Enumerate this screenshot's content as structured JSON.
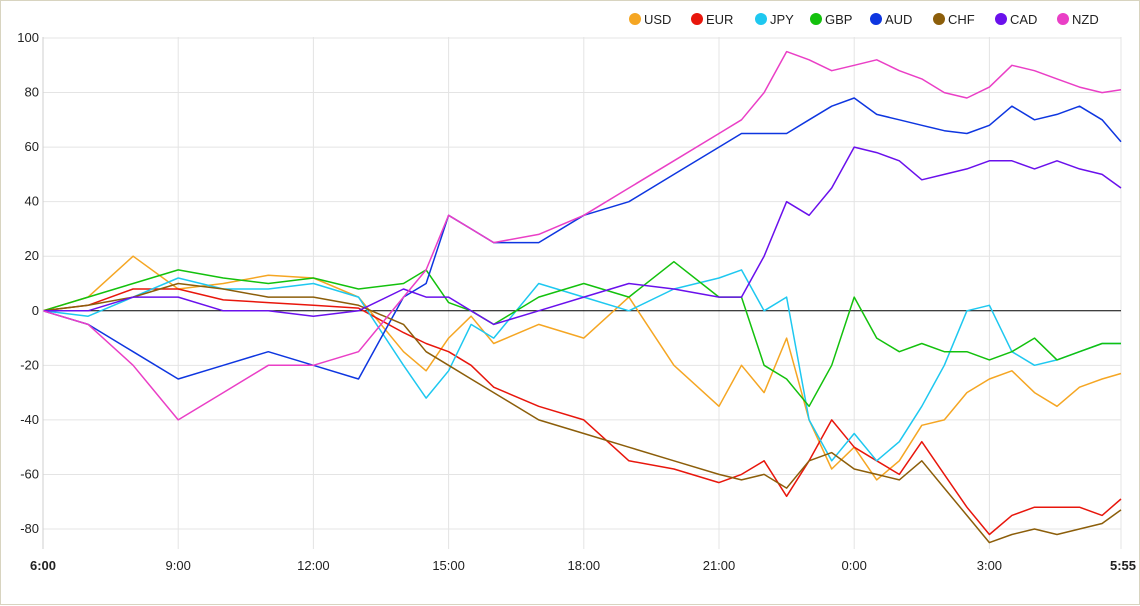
{
  "chart_data": {
    "type": "line",
    "title": "",
    "xlabel": "",
    "ylabel": "",
    "ylim": [
      -88,
      101
    ],
    "yticks": [
      100,
      80,
      60,
      40,
      20,
      0,
      -20,
      -40,
      -60,
      -80
    ],
    "xticks": [
      {
        "label": "6:00",
        "h": 0,
        "bold": true
      },
      {
        "label": "9:00",
        "h": 3,
        "bold": false
      },
      {
        "label": "12:00",
        "h": 6,
        "bold": false
      },
      {
        "label": "15:00",
        "h": 9,
        "bold": false
      },
      {
        "label": "18:00",
        "h": 12,
        "bold": false
      },
      {
        "label": "21:00",
        "h": 15,
        "bold": false
      },
      {
        "label": "0:00",
        "h": 18,
        "bold": false
      },
      {
        "label": "3:00",
        "h": 21,
        "bold": false
      },
      {
        "label": "5:55",
        "h": 23.92,
        "bold": true
      }
    ],
    "xlim": [
      0,
      23.92
    ],
    "grid": true,
    "legend_position": "top-right",
    "x_hours": [
      0,
      1,
      2,
      3,
      4,
      5,
      6,
      7,
      8,
      8.5,
      9,
      9.5,
      10,
      11,
      12,
      13,
      14,
      15,
      15.5,
      16,
      16.5,
      17,
      17.5,
      18,
      18.5,
      19,
      19.5,
      20,
      20.5,
      21,
      21.5,
      22,
      22.5,
      23,
      23.5,
      23.92
    ],
    "series": [
      {
        "name": "USD",
        "color": "#f5a623",
        "values": [
          0,
          5,
          20,
          8,
          10,
          13,
          12,
          5,
          -15,
          -22,
          -10,
          -2,
          -12,
          -5,
          -10,
          5,
          -20,
          -35,
          -20,
          -30,
          -10,
          -40,
          -58,
          -50,
          -62,
          -55,
          -42,
          -40,
          -30,
          -25,
          -22,
          -30,
          -35,
          -28,
          -25,
          -23
        ]
      },
      {
        "name": "EUR",
        "color": "#e8160c",
        "values": [
          0,
          2,
          8,
          8,
          4,
          3,
          2,
          1,
          -8,
          -12,
          -15,
          -20,
          -28,
          -35,
          -40,
          -55,
          -58,
          -63,
          -60,
          -55,
          -68,
          -55,
          -40,
          -50,
          -55,
          -60,
          -48,
          -60,
          -72,
          -82,
          -75,
          -72,
          -72,
          -72,
          -75,
          -69
        ]
      },
      {
        "name": "JPY",
        "color": "#1ec8f0",
        "values": [
          0,
          -2,
          5,
          12,
          8,
          8,
          10,
          5,
          -20,
          -32,
          -22,
          -5,
          -10,
          10,
          5,
          0,
          8,
          12,
          15,
          0,
          5,
          -40,
          -55,
          -45,
          -55,
          -48,
          -35,
          -20,
          0,
          2,
          -15,
          -20,
          -18,
          -15,
          -12,
          -12
        ]
      },
      {
        "name": "GBP",
        "color": "#13c10d",
        "values": [
          0,
          5,
          10,
          15,
          12,
          10,
          12,
          8,
          10,
          15,
          3,
          0,
          -5,
          5,
          10,
          5,
          18,
          5,
          5,
          -20,
          -25,
          -35,
          -20,
          5,
          -10,
          -15,
          -12,
          -15,
          -15,
          -18,
          -15,
          -10,
          -18,
          -15,
          -12,
          -12
        ]
      },
      {
        "name": "AUD",
        "color": "#0e36e0",
        "values": [
          0,
          -5,
          -15,
          -25,
          -20,
          -15,
          -20,
          -25,
          5,
          10,
          35,
          30,
          25,
          25,
          35,
          40,
          50,
          60,
          65,
          65,
          65,
          70,
          75,
          78,
          72,
          70,
          68,
          66,
          65,
          68,
          75,
          70,
          72,
          75,
          70,
          62
        ]
      },
      {
        "name": "CHF",
        "color": "#8c5e0a",
        "values": [
          0,
          2,
          5,
          10,
          8,
          5,
          5,
          2,
          -5,
          -15,
          -20,
          -25,
          -30,
          -40,
          -45,
          -50,
          -55,
          -60,
          -62,
          -60,
          -65,
          -55,
          -52,
          -58,
          -60,
          -62,
          -55,
          -65,
          -75,
          -85,
          -82,
          -80,
          -82,
          -80,
          -78,
          -73
        ]
      },
      {
        "name": "CAD",
        "color": "#6a10ec",
        "values": [
          0,
          0,
          5,
          5,
          0,
          0,
          -2,
          0,
          8,
          5,
          5,
          0,
          -5,
          0,
          5,
          10,
          8,
          5,
          5,
          20,
          40,
          35,
          45,
          60,
          58,
          55,
          48,
          50,
          52,
          55,
          55,
          52,
          55,
          52,
          50,
          45
        ]
      },
      {
        "name": "NZD",
        "color": "#ea3fc6",
        "values": [
          0,
          -5,
          -20,
          -40,
          -30,
          -20,
          -20,
          -15,
          5,
          15,
          35,
          30,
          25,
          28,
          35,
          45,
          55,
          65,
          70,
          80,
          95,
          92,
          88,
          90,
          92,
          88,
          85,
          80,
          78,
          82,
          90,
          88,
          85,
          82,
          80,
          81
        ]
      }
    ]
  }
}
